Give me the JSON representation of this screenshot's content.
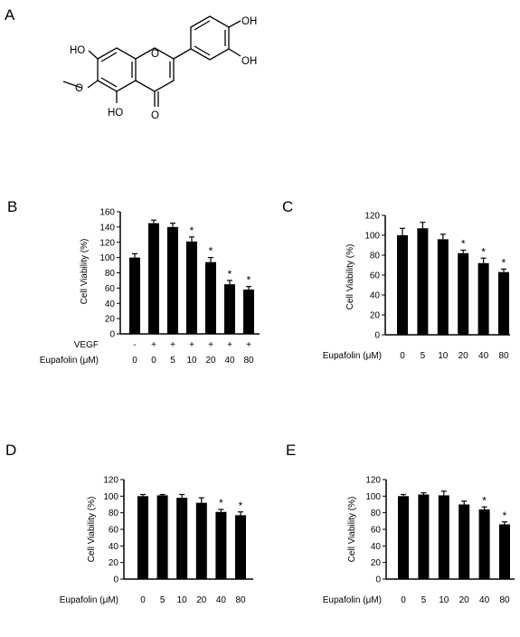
{
  "panels": {
    "A": {
      "letter": "A",
      "atoms": {
        "oh_top_right": "OH",
        "oh_right": "OH",
        "ho_left": "HO",
        "ho_bottom": "HO",
        "o_ring": "O",
        "o_carbonyl": "O"
      }
    },
    "B": {
      "letter": "B"
    },
    "C": {
      "letter": "C"
    },
    "D": {
      "letter": "D"
    },
    "E": {
      "letter": "E"
    }
  },
  "chart_data": [
    {
      "panel": "B",
      "type": "bar",
      "ylabel": "Cell Viability (%)",
      "ylim": [
        0,
        160
      ],
      "yticks": [
        0,
        20,
        40,
        60,
        80,
        100,
        120,
        140,
        160
      ],
      "row_labels": [
        "VEGF",
        "Eupafolin (μM)"
      ],
      "vegf": [
        "-",
        "+",
        "+",
        "+",
        "+",
        "+",
        "+"
      ],
      "categories": [
        "0",
        "0",
        "5",
        "10",
        "20",
        "40",
        "80"
      ],
      "values": [
        100,
        145,
        140,
        121,
        94,
        65,
        58
      ],
      "errors": [
        5,
        4,
        5,
        6,
        6,
        5,
        4
      ],
      "significant": [
        false,
        false,
        false,
        true,
        true,
        true,
        true
      ],
      "star": "*",
      "color": "#000000"
    },
    {
      "panel": "C",
      "type": "bar",
      "ylabel": "Cell Viability (%)",
      "ylim": [
        0,
        120
      ],
      "yticks": [
        0,
        20,
        40,
        60,
        80,
        100,
        120
      ],
      "xlabel": "Eupafolin (μM)",
      "categories": [
        "0",
        "5",
        "10",
        "20",
        "40",
        "80"
      ],
      "values": [
        100,
        107,
        96,
        82,
        72,
        63
      ],
      "errors": [
        7,
        6,
        5,
        3,
        5,
        3
      ],
      "significant": [
        false,
        false,
        false,
        true,
        true,
        true
      ],
      "star": "*",
      "color": "#000000"
    },
    {
      "panel": "D",
      "type": "bar",
      "ylabel": "Cell Viability (%)",
      "ylim": [
        0,
        120
      ],
      "yticks": [
        0,
        20,
        40,
        60,
        80,
        100,
        120
      ],
      "xlabel": "Eupafolin (μM)",
      "categories": [
        "0",
        "5",
        "10",
        "20",
        "40",
        "80"
      ],
      "values": [
        100,
        101,
        98,
        92,
        81,
        77
      ],
      "errors": [
        2,
        1,
        4,
        6,
        3,
        4
      ],
      "significant": [
        false,
        false,
        false,
        false,
        true,
        true
      ],
      "star": "*",
      "color": "#000000"
    },
    {
      "panel": "E",
      "type": "bar",
      "ylabel": "Cell Viability (%)",
      "ylim": [
        0,
        120
      ],
      "yticks": [
        0,
        20,
        40,
        60,
        80,
        100,
        120
      ],
      "xlabel": "Eupafolin (μM)",
      "categories": [
        "0",
        "5",
        "10",
        "20",
        "40",
        "80"
      ],
      "values": [
        100,
        102,
        101,
        90,
        84,
        66
      ],
      "errors": [
        2,
        2,
        5,
        4,
        3,
        3
      ],
      "significant": [
        false,
        false,
        false,
        false,
        true,
        true
      ],
      "star": "*",
      "color": "#000000"
    }
  ]
}
